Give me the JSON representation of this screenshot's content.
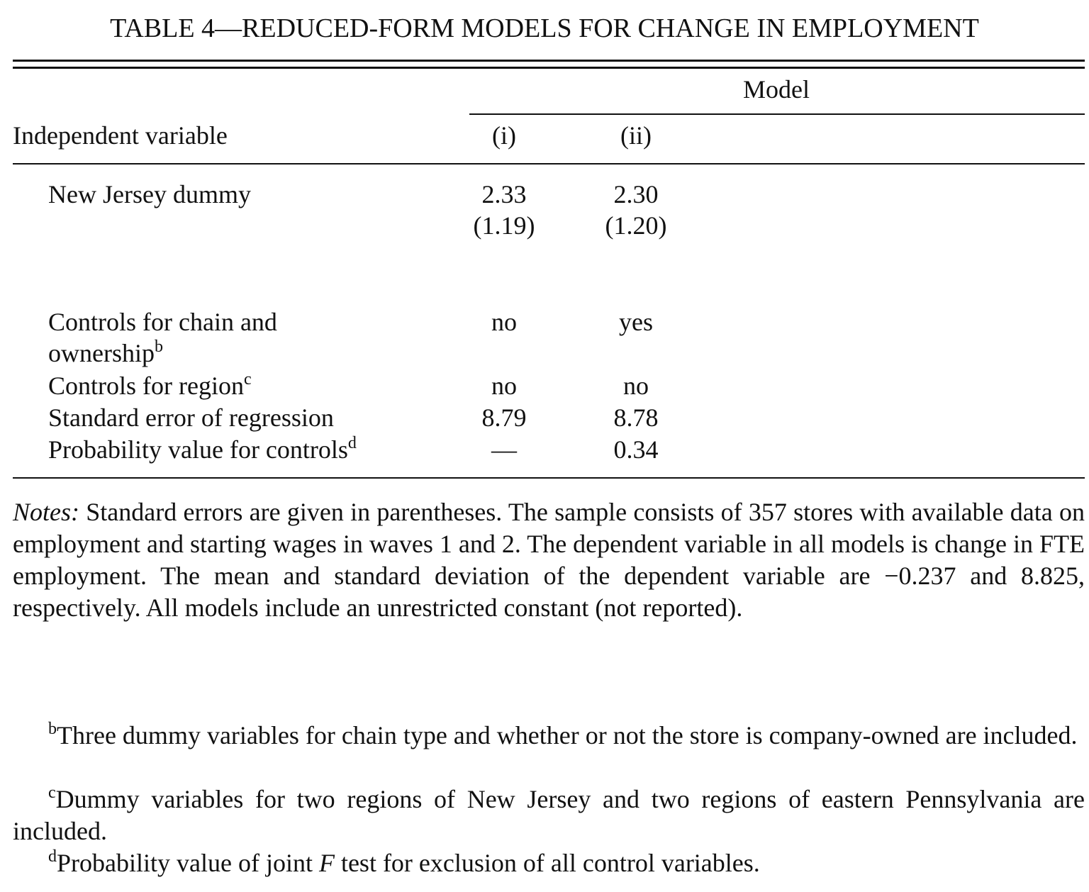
{
  "table": {
    "title": "TABLE 4—REDUCED-FORM MODELS FOR CHANGE IN EMPLOYMENT",
    "model_header": "Model",
    "row_header": "Independent variable",
    "columns": [
      "(i)",
      "(ii)"
    ],
    "rows": [
      {
        "label": "New Jersey dummy",
        "values": [
          "2.33",
          "2.30"
        ],
        "se": [
          "(1.19)",
          "(1.20)"
        ]
      },
      {
        "label_line1": "Controls for chain and",
        "label_line2": "ownership",
        "sup": "b",
        "values": [
          "no",
          "yes"
        ]
      },
      {
        "label": "Controls for region",
        "sup": "c",
        "values": [
          "no",
          "no"
        ]
      },
      {
        "label": "Standard error of regression",
        "values": [
          "8.79",
          "8.78"
        ]
      },
      {
        "label": "Probability value for controls",
        "sup": "d",
        "values": [
          "—",
          "0.34"
        ]
      }
    ]
  },
  "notes": {
    "lead": "Notes:",
    "text": " Standard errors are given in parentheses. The sample consists of 357 stores with available data on employment and starting wages in waves 1 and 2. The dependent variable in all models is change in FTE employment. The mean and standard deviation of the dependent variable are −0.237 and 8.825, respectively. All models include an unrestricted constant (not reported)."
  },
  "footnotes": [
    {
      "mark": "b",
      "text": "Three dummy variables for chain type and whether or not the store is company-owned are included."
    },
    {
      "mark": "c",
      "text": "Dummy variables for two regions of New Jersey and two regions of eastern Pennsylvania are included."
    },
    {
      "mark": "d",
      "text_before": "Probability value of joint ",
      "italic": "F",
      "text_after": " test for exclusion of all control variables."
    }
  ]
}
